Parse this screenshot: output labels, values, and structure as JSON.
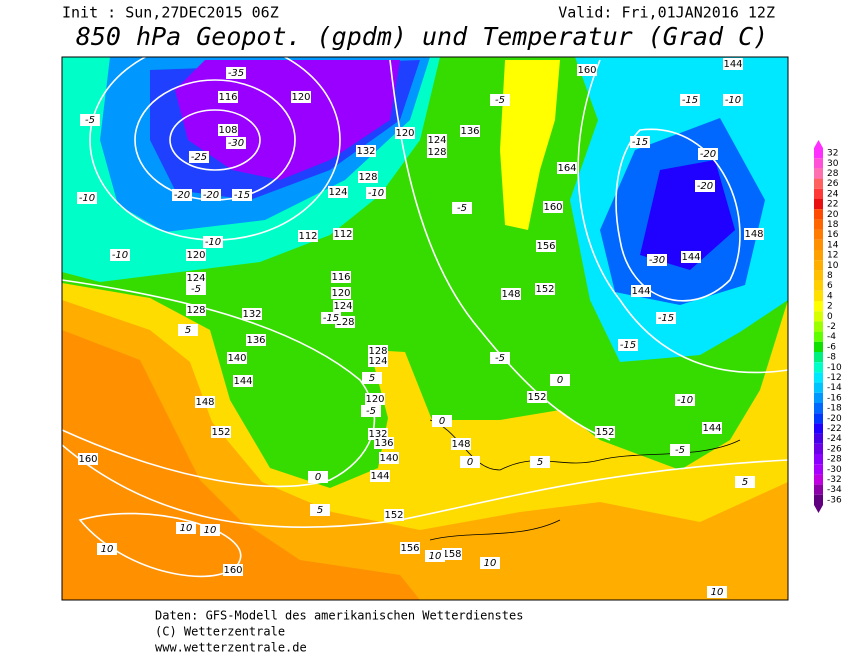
{
  "header": {
    "init": "Init : Sun,27DEC2015 06Z",
    "valid": "Valid: Fri,01JAN2016 12Z",
    "title": "850 hPa Geopot. (gpdm) und Temperatur (Grad C)"
  },
  "geopotential_labels": [
    116,
    108,
    120,
    120,
    124,
    128,
    132,
    136,
    140,
    144,
    148,
    152,
    160,
    160,
    112,
    112,
    116,
    120,
    124,
    128,
    128,
    124,
    120,
    132,
    136,
    140,
    144,
    152,
    156,
    158,
    148,
    152,
    152,
    144,
    144,
    144,
    148,
    148,
    152,
    156,
    160,
    164,
    160,
    144,
    136,
    128,
    124,
    132,
    120,
    128,
    124
  ],
  "temperature_labels": [
    -35,
    -30,
    -25,
    -20,
    -20,
    -15,
    -10,
    -10,
    -10,
    -5,
    -5,
    5,
    10,
    10,
    10,
    10,
    10,
    10,
    5,
    0,
    -5,
    0,
    0,
    5,
    5,
    -5,
    -10,
    -15,
    -15,
    -30,
    -20,
    -20,
    -15,
    -15,
    -10,
    -5,
    -5,
    -10,
    -15,
    5,
    0,
    -5
  ],
  "colorbar": {
    "ticks": [
      32,
      30,
      28,
      26,
      24,
      22,
      20,
      18,
      16,
      14,
      12,
      10,
      8,
      6,
      4,
      2,
      0,
      -2,
      -4,
      -6,
      -8,
      -10,
      -12,
      -14,
      -16,
      -18,
      -20,
      -22,
      -24,
      -26,
      -28,
      -30,
      -32,
      -34,
      -36
    ],
    "colors": [
      "#ff30ff",
      "#ff50d8",
      "#ff70b0",
      "#ff6060",
      "#ff3838",
      "#e81010",
      "#ff4a00",
      "#ff6600",
      "#ff7c00",
      "#ff9000",
      "#ffa000",
      "#ffae00",
      "#ffbe00",
      "#ffcf00",
      "#ffe000",
      "#ffff00",
      "#d8ff00",
      "#9cff00",
      "#60ff00",
      "#10e000",
      "#00f080",
      "#00ffc8",
      "#00e8ff",
      "#00c4ff",
      "#0098ff",
      "#0068ff",
      "#0038ff",
      "#2000ff",
      "#4800e8",
      "#6c00e8",
      "#8c00ff",
      "#a800ff",
      "#c000e0",
      "#8c00a8",
      "#600080"
    ]
  },
  "footer": {
    "line1": "Daten: GFS-Modell des amerikanischen Wetterdienstes",
    "line2": "(C) Wetterzentrale",
    "line3": "www.wetterzentrale.de"
  }
}
